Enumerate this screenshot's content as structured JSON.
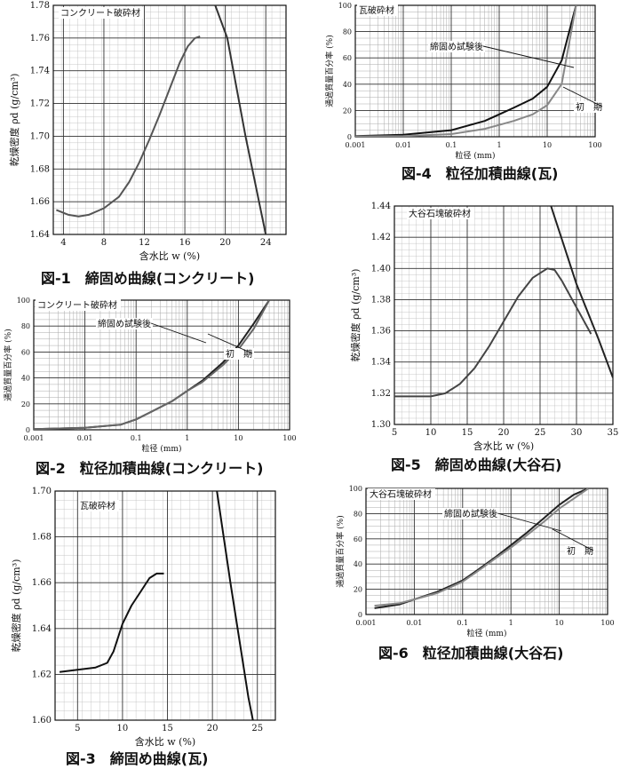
{
  "chart_data": [
    {
      "id": "fig1",
      "type": "line",
      "caption": "図-1　締固め曲線(コンクリート)",
      "material": "コンクリート破砕材",
      "xlabel": "含水比 w (%)",
      "ylabel": "乾燥密度 ρd (g/cm³)",
      "xlim": [
        3,
        26
      ],
      "ylim": [
        1.64,
        1.78
      ],
      "xticks": [
        4,
        8,
        12,
        16,
        20,
        24
      ],
      "xtick_labels": [
        "4",
        "8",
        "12",
        "16",
        "20",
        "24"
      ],
      "yticks": [
        1.64,
        1.66,
        1.68,
        1.7,
        1.72,
        1.74,
        1.76,
        1.78
      ],
      "ytick_labels": [
        "1.64",
        "1.66",
        "1.68",
        "1.70",
        "1.72",
        "1.74",
        "1.76",
        "1.78"
      ],
      "series": [
        {
          "name": "",
          "points": [
            [
              3.3,
              1.655
            ],
            [
              4.5,
              1.652
            ],
            [
              5.5,
              1.651
            ],
            [
              6.5,
              1.652
            ],
            [
              8,
              1.656
            ],
            [
              9.5,
              1.663
            ],
            [
              10.5,
              1.672
            ],
            [
              11.5,
              1.684
            ],
            [
              12.5,
              1.698
            ],
            [
              13.5,
              1.713
            ],
            [
              14.5,
              1.729
            ],
            [
              15.5,
              1.745
            ],
            [
              16.3,
              1.755
            ],
            [
              17,
              1.76
            ],
            [
              17.5,
              1.761
            ]
          ]
        },
        {
          "name": "",
          "points": [
            [
              19.0,
              1.78
            ],
            [
              20.2,
              1.76
            ],
            [
              22.0,
              1.7
            ],
            [
              24.0,
              1.64
            ]
          ]
        }
      ]
    },
    {
      "id": "fig2",
      "type": "line",
      "caption": "図-2　粒径加積曲線(コンクリート)",
      "material": "コンクリート破砕材",
      "xlabel": "粒径 (mm)",
      "ylabel": "通過質量百分率 (%)",
      "xscale": "log",
      "xlim": [
        0.001,
        100
      ],
      "ylim": [
        0,
        100
      ],
      "xticks": [
        0.001,
        0.01,
        0.1,
        1,
        10,
        100
      ],
      "xtick_labels": [
        "0.001",
        "0.01",
        "0.1",
        "1",
        "10",
        "100"
      ],
      "yticks": [
        0,
        20,
        40,
        60,
        80,
        100
      ],
      "ytick_labels": [
        "0",
        "20",
        "40",
        "60",
        "80",
        "100"
      ],
      "annotations": [
        "締固め試験後",
        "初　期"
      ],
      "series": [
        {
          "name": "締固め試験後",
          "points": [
            [
              0.001,
              0.5
            ],
            [
              0.01,
              1.5
            ],
            [
              0.05,
              4
            ],
            [
              0.1,
              8
            ],
            [
              0.2,
              14
            ],
            [
              0.5,
              22
            ],
            [
              1,
              30
            ],
            [
              2,
              38
            ],
            [
              5,
              52
            ],
            [
              10,
              65
            ],
            [
              20,
              82
            ],
            [
              40,
              100
            ]
          ]
        },
        {
          "name": "初期",
          "points": [
            [
              0.001,
              0.5
            ],
            [
              0.01,
              1.5
            ],
            [
              0.05,
              4
            ],
            [
              0.1,
              8
            ],
            [
              0.2,
              14
            ],
            [
              0.5,
              22
            ],
            [
              1,
              30
            ],
            [
              2,
              37
            ],
            [
              5,
              50
            ],
            [
              10,
              62
            ],
            [
              20,
              78
            ],
            [
              40,
              100
            ]
          ]
        }
      ]
    },
    {
      "id": "fig3",
      "type": "line",
      "caption": "図-3　締固め曲線(瓦)",
      "material": "瓦破砕材",
      "xlabel": "含水比 w (%)",
      "ylabel": "乾燥密度 ρd (g/cm³)",
      "xlim": [
        2.5,
        27
      ],
      "ylim": [
        1.6,
        1.7
      ],
      "xticks": [
        5,
        10,
        15,
        20,
        25
      ],
      "xtick_labels": [
        "5",
        "10",
        "15",
        "20",
        "25"
      ],
      "yticks": [
        1.6,
        1.62,
        1.64,
        1.66,
        1.68,
        1.7
      ],
      "ytick_labels": [
        "1.60",
        "1.62",
        "1.64",
        "1.66",
        "1.68",
        "1.70"
      ],
      "series": [
        {
          "name": "",
          "points": [
            [
              3,
              1.621
            ],
            [
              5,
              1.622
            ],
            [
              7,
              1.623
            ],
            [
              8.3,
              1.625
            ],
            [
              9,
              1.63
            ],
            [
              10,
              1.642
            ],
            [
              11,
              1.65
            ],
            [
              12,
              1.656
            ],
            [
              13,
              1.662
            ],
            [
              13.8,
              1.664
            ],
            [
              14.6,
              1.664
            ]
          ]
        },
        {
          "name": "",
          "points": [
            [
              20.5,
              1.7
            ],
            [
              22,
              1.66
            ],
            [
              24,
              1.61
            ],
            [
              24.5,
              1.6
            ]
          ]
        }
      ]
    },
    {
      "id": "fig4",
      "type": "line",
      "caption": "図-4　粒径加積曲線(瓦)",
      "material": "瓦破砕材",
      "xlabel": "粒径 (mm)",
      "ylabel": "通過質量百分率 (%)",
      "xscale": "log",
      "xlim": [
        0.001,
        100
      ],
      "ylim": [
        0,
        100
      ],
      "xticks": [
        0.001,
        0.01,
        0.1,
        1,
        10,
        100
      ],
      "xtick_labels": [
        "0.001",
        "0.01",
        "0.1",
        "1",
        "10",
        "100"
      ],
      "yticks": [
        0,
        20,
        40,
        60,
        80,
        100
      ],
      "ytick_labels": [
        "0",
        "20",
        "40",
        "60",
        "80",
        "100"
      ],
      "annotations": [
        "締固め試験後",
        "初　期"
      ],
      "series": [
        {
          "name": "締固め試験後",
          "points": [
            [
              0.001,
              0.5
            ],
            [
              0.01,
              1.5
            ],
            [
              0.1,
              5
            ],
            [
              0.5,
              12
            ],
            [
              1,
              17
            ],
            [
              2,
              22
            ],
            [
              5,
              29
            ],
            [
              10,
              38
            ],
            [
              20,
              58
            ],
            [
              40,
              100
            ]
          ]
        },
        {
          "name": "初期",
          "points": [
            [
              0.001,
              0.3
            ],
            [
              0.01,
              0.5
            ],
            [
              0.1,
              2
            ],
            [
              0.5,
              6
            ],
            [
              1,
              9
            ],
            [
              2,
              12
            ],
            [
              5,
              17
            ],
            [
              10,
              24
            ],
            [
              20,
              40
            ],
            [
              40,
              100
            ]
          ]
        }
      ]
    },
    {
      "id": "fig5",
      "type": "line",
      "caption": "図-5　締固め曲線(大谷石)",
      "material": "大谷石塊破砕材",
      "xlabel": "含水比 w (%)",
      "ylabel": "乾燥密度 ρd (g/cm³)",
      "xlim": [
        5,
        35
      ],
      "ylim": [
        1.3,
        1.44
      ],
      "xticks": [
        5,
        10,
        15,
        20,
        25,
        30,
        35
      ],
      "xtick_labels": [
        "5",
        "10",
        "15",
        "20",
        "25",
        "30",
        "35"
      ],
      "yticks": [
        1.3,
        1.32,
        1.34,
        1.36,
        1.38,
        1.4,
        1.42,
        1.44
      ],
      "ytick_labels": [
        "1.30",
        "1.32",
        "1.34",
        "1.36",
        "1.38",
        "1.40",
        "1.42",
        "1.44"
      ],
      "series": [
        {
          "name": "",
          "points": [
            [
              5,
              1.318
            ],
            [
              10,
              1.318
            ],
            [
              12,
              1.32
            ],
            [
              14,
              1.326
            ],
            [
              16,
              1.336
            ],
            [
              18,
              1.35
            ],
            [
              20,
              1.366
            ],
            [
              22,
              1.382
            ],
            [
              24,
              1.394
            ],
            [
              26,
              1.4
            ],
            [
              27,
              1.399
            ],
            [
              28,
              1.392
            ],
            [
              30,
              1.375
            ],
            [
              32,
              1.358
            ]
          ]
        },
        {
          "name": "",
          "points": [
            [
              26.5,
              1.44
            ],
            [
              30,
              1.39
            ],
            [
              33,
              1.355
            ],
            [
              35,
              1.33
            ]
          ]
        }
      ]
    },
    {
      "id": "fig6",
      "type": "line",
      "caption": "図-6　粒径加積曲線(大谷石)",
      "material": "大谷石塊破砕材",
      "xlabel": "粒径 (mm)",
      "ylabel": "通過質量百分率 (%)",
      "xscale": "log",
      "xlim": [
        0.001,
        100
      ],
      "ylim": [
        0,
        100
      ],
      "xticks": [
        0.001,
        0.01,
        0.1,
        1,
        10,
        100
      ],
      "xtick_labels": [
        "0.001",
        "0.01",
        "0.1",
        "1",
        "10",
        "100"
      ],
      "yticks": [
        0,
        20,
        40,
        60,
        80,
        100
      ],
      "ytick_labels": [
        "0",
        "20",
        "40",
        "60",
        "80",
        "100"
      ],
      "annotations": [
        "締固め試験後",
        "初　期"
      ],
      "series": [
        {
          "name": "締固め試験後",
          "points": [
            [
              0.0015,
              5
            ],
            [
              0.005,
              8
            ],
            [
              0.01,
              12
            ],
            [
              0.03,
              18
            ],
            [
              0.1,
              27
            ],
            [
              0.2,
              35
            ],
            [
              0.5,
              46
            ],
            [
              1,
              55
            ],
            [
              2,
              64
            ],
            [
              5,
              77
            ],
            [
              10,
              87
            ],
            [
              20,
              95
            ],
            [
              40,
              100
            ]
          ]
        },
        {
          "name": "初期",
          "points": [
            [
              0.0015,
              7
            ],
            [
              0.005,
              9
            ],
            [
              0.01,
              12
            ],
            [
              0.03,
              17
            ],
            [
              0.1,
              26
            ],
            [
              0.2,
              34
            ],
            [
              0.5,
              45
            ],
            [
              1,
              53
            ],
            [
              2,
              62
            ],
            [
              5,
              74
            ],
            [
              10,
              84
            ],
            [
              20,
              92
            ],
            [
              40,
              100
            ]
          ]
        }
      ]
    }
  ]
}
